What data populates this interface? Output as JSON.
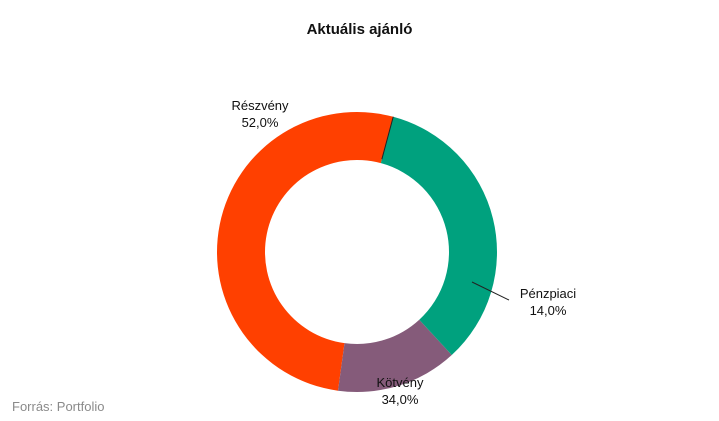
{
  "chart_data": {
    "type": "pie",
    "title": "Aktuális ajánló",
    "categories": [
      "Részvény",
      "Pénzpiaci",
      "Kötvény"
    ],
    "values": [
      52.0,
      14.0,
      34.0
    ],
    "value_labels": [
      "52,0%",
      "14,0%",
      "34,0%"
    ],
    "colors": [
      "#ff4000",
      "#855b7a",
      "#00a17e"
    ],
    "legend": "none"
  },
  "source": "Forrás: Portfolio"
}
